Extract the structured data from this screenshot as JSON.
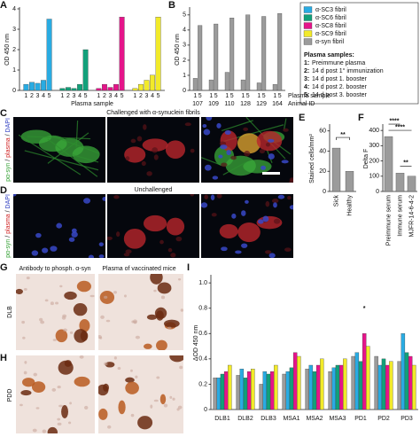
{
  "chart_data": [
    {
      "type": "bar",
      "label": "A",
      "ylabel": "OD 450 nm",
      "xlabel": "Plasma sample",
      "categories": [
        "1",
        "2",
        "3",
        "4",
        "5"
      ],
      "series": [
        {
          "color": "#29abe2",
          "values": [
            0.3,
            0.4,
            0.35,
            0.5,
            3.5
          ]
        },
        {
          "color": "#12a07a",
          "values": [
            0.1,
            0.15,
            0.1,
            0.3,
            2.0
          ]
        },
        {
          "color": "#e5148a",
          "values": [
            0.1,
            0.3,
            0.15,
            0.3,
            3.6
          ]
        },
        {
          "color": "#f2ea2a",
          "values": [
            0.1,
            0.3,
            0.5,
            0.75,
            3.6
          ]
        }
      ],
      "ylim": [
        0,
        4
      ],
      "yticks": [
        0,
        1,
        2,
        3,
        4
      ]
    },
    {
      "type": "bar",
      "label": "B",
      "ylabel": "OD 450 nm",
      "xlabel": "Plasma sample",
      "xlabel2": "Animal ID",
      "categories": [
        "107",
        "109",
        "110",
        "128",
        "129",
        "164"
      ],
      "sample_labels": [
        "1",
        "5"
      ],
      "series": [
        {
          "color": "#9b9b9b",
          "values": [
            0.8,
            0.7,
            1.2,
            0.7,
            0.5,
            0.4
          ]
        },
        {
          "color": "#9b9b9b",
          "values": [
            4.3,
            4.4,
            4.8,
            5.0,
            4.9,
            5.1
          ]
        }
      ],
      "ylim": [
        0,
        5.4
      ],
      "yticks": [
        0,
        1,
        2,
        3,
        4,
        5
      ]
    },
    {
      "type": "bar",
      "label": "E",
      "ylabel": "Stained cells/mm²",
      "categories": [
        "Sick",
        "Healthy"
      ],
      "values": [
        43,
        20
      ],
      "color": "#9b9b9b",
      "ylim": [
        0,
        65
      ],
      "yticks": [
        0,
        20,
        40,
        60
      ],
      "annotations": [
        "**"
      ]
    },
    {
      "type": "bar",
      "label": "F",
      "ylabel": "Delta F",
      "categories": [
        "Preimmune serum",
        "Immune serum",
        "MJFR-14-6-4-2"
      ],
      "values": [
        360,
        120,
        100
      ],
      "color": "#9b9b9b",
      "ylim": [
        0,
        430
      ],
      "yticks": [
        0,
        100,
        200,
        300,
        400
      ],
      "annotations": [
        "****",
        "****",
        "**"
      ]
    },
    {
      "type": "bar",
      "label": "I",
      "ylabel": "ΔOD 450 nm",
      "categories": [
        "DLB1",
        "DLB2",
        "DLB3",
        "MSA1",
        "MSA2",
        "MSA3",
        "PD1",
        "PD2",
        "PD3"
      ],
      "series": [
        {
          "color": "#9b9b9b",
          "values": [
            0.25,
            0.27,
            0.2,
            0.28,
            0.32,
            0.3,
            0.42,
            0.42,
            0.38
          ]
        },
        {
          "color": "#29abe2",
          "values": [
            0.25,
            0.32,
            0.3,
            0.3,
            0.35,
            0.33,
            0.45,
            0.35,
            0.6
          ]
        },
        {
          "color": "#12a07a",
          "values": [
            0.28,
            0.25,
            0.28,
            0.33,
            0.3,
            0.35,
            0.38,
            0.4,
            0.45
          ]
        },
        {
          "color": "#e5148a",
          "values": [
            0.3,
            0.3,
            0.3,
            0.45,
            0.35,
            0.35,
            0.6,
            0.35,
            0.42
          ]
        },
        {
          "color": "#f2ea2a",
          "values": [
            0.35,
            0.32,
            0.35,
            0.42,
            0.4,
            0.4,
            0.5,
            0.38,
            0.35
          ]
        }
      ],
      "ylim": [
        0,
        1.05
      ],
      "yticks": [
        0,
        0.2,
        0.4,
        0.6,
        0.8,
        {
          "value": 1,
          "label": "1.0"
        }
      ],
      "annotations": [
        "*"
      ]
    }
  ],
  "legend": {
    "items": [
      {
        "name": "α-SC3 fibril",
        "color": "#29abe2"
      },
      {
        "name": "α-SC6 fibril",
        "color": "#12a07a"
      },
      {
        "name": "α-SC8 fibril",
        "color": "#e5148a"
      },
      {
        "name": "α-SC9 fibril",
        "color": "#f2ea2a"
      },
      {
        "name": "α-syn fibril",
        "color": "#9b9b9b"
      }
    ],
    "heading": "Plasma samples:",
    "samples": [
      {
        "key": "1:",
        "text": "Preimmune plasma"
      },
      {
        "key": "2:",
        "text": "14 d post 1° immunization"
      },
      {
        "key": "3:",
        "text": "14 d post 1. booster"
      },
      {
        "key": "4:",
        "text": "14 d post 2. booster"
      },
      {
        "key": "5:",
        "text": "14 d post 3. booster"
      }
    ]
  },
  "micrographs": {
    "C": {
      "panel": "C",
      "title": "Challenged with α-synuclein fibrils",
      "stain": [
        "pα-syn",
        " / ",
        "plasma",
        " / ",
        "DAPI"
      ]
    },
    "D": {
      "panel": "D",
      "title": "Unchallenged",
      "stain": [
        "pα-syn",
        " / ",
        "plasma",
        " / ",
        "DAPI"
      ]
    },
    "G": {
      "panel": "G",
      "columns": [
        "Antibody to phosph. α-syn",
        "Plasma of vaccinated mice"
      ],
      "row": "DLB"
    },
    "H": {
      "panel": "H",
      "row": "PDD"
    }
  }
}
